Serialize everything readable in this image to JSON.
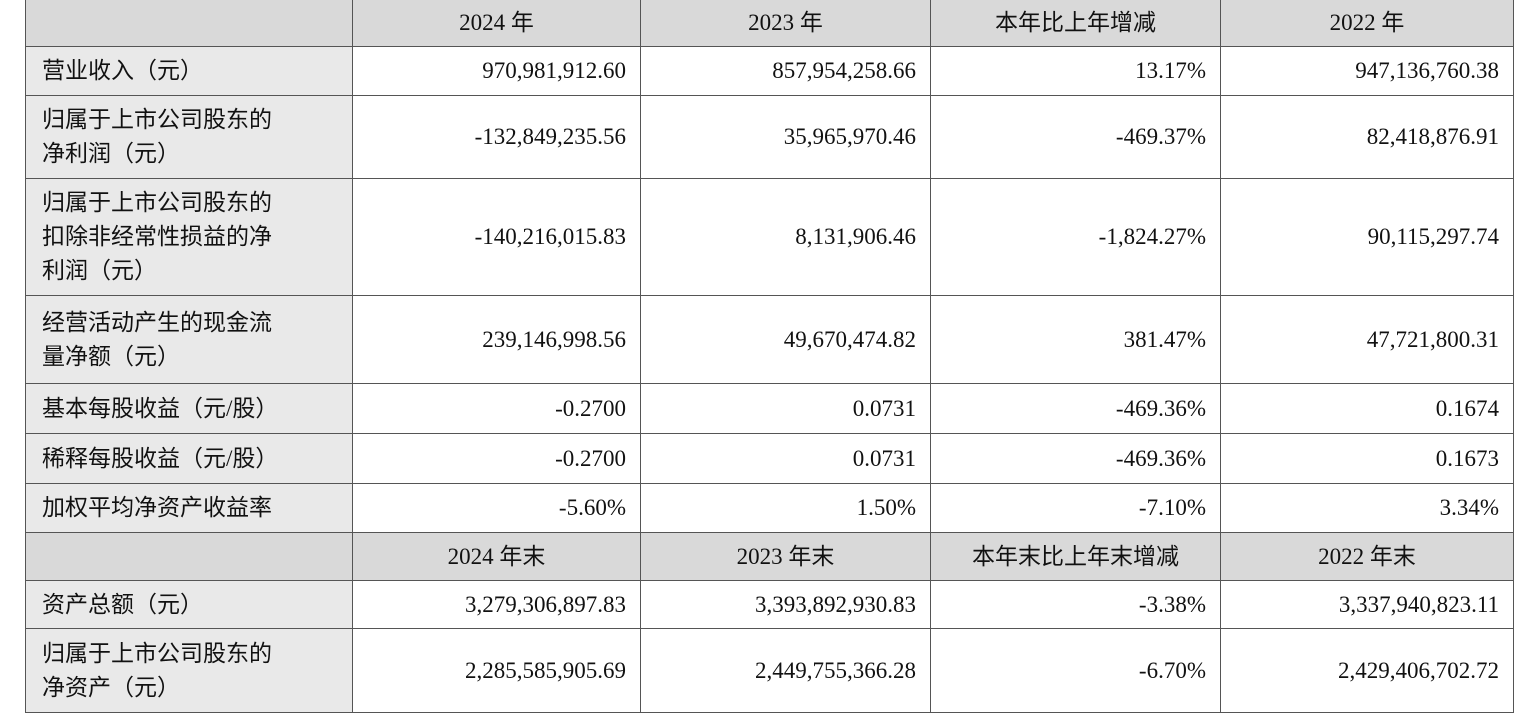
{
  "header1": [
    "",
    "2024 年",
    "2023 年",
    "本年比上年增减",
    "2022 年"
  ],
  "rows1": [
    {
      "label": [
        "营业收入（元）"
      ],
      "values": [
        "970,981,912.60",
        "857,954,258.66",
        "13.17%",
        "947,136,760.38"
      ]
    },
    {
      "label": [
        "归属于上市公司股东的",
        "净利润（元）"
      ],
      "values": [
        "-132,849,235.56",
        "35,965,970.46",
        "-469.37%",
        "82,418,876.91"
      ]
    },
    {
      "label": [
        "归属于上市公司股东的",
        "扣除非经常性损益的净",
        "利润（元）"
      ],
      "values": [
        "-140,216,015.83",
        "8,131,906.46",
        "-1,824.27%",
        "90,115,297.74"
      ]
    },
    {
      "label": [
        "经营活动产生的现金流",
        "量净额（元）"
      ],
      "values": [
        "239,146,998.56",
        "49,670,474.82",
        "381.47%",
        "47,721,800.31"
      ]
    },
    {
      "label": [
        "基本每股收益（元/股）"
      ],
      "values": [
        "-0.2700",
        "0.0731",
        "-469.36%",
        "0.1674"
      ]
    },
    {
      "label": [
        "稀释每股收益（元/股）"
      ],
      "values": [
        "-0.2700",
        "0.0731",
        "-469.36%",
        "0.1673"
      ]
    },
    {
      "label": [
        "加权平均净资产收益率"
      ],
      "values": [
        "-5.60%",
        "1.50%",
        "-7.10%",
        "3.34%"
      ]
    }
  ],
  "header2": [
    "",
    "2024 年末",
    "2023 年末",
    "本年末比上年末增减",
    "2022 年末"
  ],
  "rows2": [
    {
      "label": [
        "资产总额（元）"
      ],
      "values": [
        "3,279,306,897.83",
        "3,393,892,930.83",
        "-3.38%",
        "3,337,940,823.11"
      ]
    },
    {
      "label": [
        "归属于上市公司股东的",
        "净资产（元）"
      ],
      "values": [
        "2,285,585,905.69",
        "2,449,755,366.28",
        "-6.70%",
        "2,429,406,702.72"
      ]
    }
  ]
}
